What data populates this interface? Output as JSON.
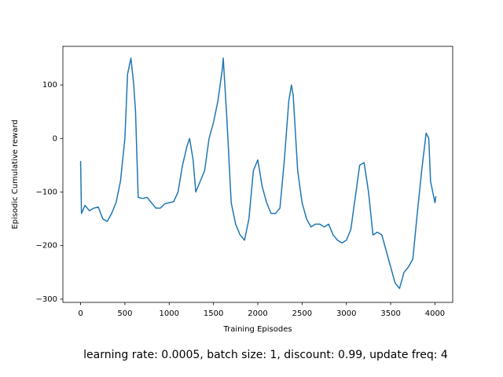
{
  "chart_data": {
    "type": "line",
    "xlabel": "Training Episodes",
    "ylabel": "Episodic Cumulative reward",
    "caption": "learning rate: 0.0005, batch size: 1, discount: 0.99, update freq: 4",
    "x": [
      0,
      10,
      50,
      100,
      150,
      200,
      250,
      300,
      350,
      400,
      450,
      500,
      530,
      568,
      600,
      620,
      650,
      700,
      750,
      800,
      850,
      900,
      950,
      1000,
      1050,
      1100,
      1150,
      1200,
      1230,
      1270,
      1300,
      1350,
      1400,
      1450,
      1500,
      1550,
      1600,
      1610,
      1650,
      1700,
      1750,
      1800,
      1850,
      1900,
      1950,
      2000,
      2050,
      2100,
      2150,
      2200,
      2250,
      2300,
      2350,
      2380,
      2400,
      2450,
      2500,
      2550,
      2600,
      2650,
      2700,
      2750,
      2800,
      2850,
      2900,
      2950,
      3000,
      3050,
      3100,
      3150,
      3200,
      3250,
      3300,
      3350,
      3400,
      3450,
      3500,
      3550,
      3600,
      3650,
      3700,
      3750,
      3800,
      3850,
      3900,
      3930,
      3950,
      4000,
      4010
    ],
    "values": [
      -42,
      -140,
      -125,
      -135,
      -130,
      -128,
      -150,
      -155,
      -140,
      -120,
      -80,
      0,
      120,
      150,
      100,
      50,
      -110,
      -112,
      -110,
      -120,
      -130,
      -130,
      -122,
      -120,
      -118,
      -100,
      -50,
      -15,
      0,
      -40,
      -100,
      -80,
      -60,
      0,
      30,
      70,
      130,
      150,
      40,
      -120,
      -160,
      -180,
      -190,
      -150,
      -60,
      -40,
      -90,
      -120,
      -140,
      -140,
      -130,
      -40,
      70,
      100,
      80,
      -60,
      -120,
      -150,
      -165,
      -160,
      -160,
      -165,
      -160,
      -180,
      -190,
      -195,
      -190,
      -170,
      -110,
      -50,
      -45,
      -100,
      -180,
      -175,
      -180,
      -210,
      -240,
      -270,
      -280,
      -250,
      -240,
      -225,
      -140,
      -60,
      10,
      0,
      -80,
      -120,
      -108
    ],
    "color": "#1f77b4",
    "xlim": [
      -200,
      4200
    ],
    "ylim": [
      -306,
      172
    ],
    "xticks": [
      0,
      500,
      1000,
      1500,
      2000,
      2500,
      3000,
      3500,
      4000
    ],
    "yticks": [
      {
        "value": -300,
        "label": "−300"
      },
      {
        "value": -200,
        "label": "−200"
      },
      {
        "value": -100,
        "label": "−100"
      },
      0,
      100
    ],
    "grid": false
  }
}
